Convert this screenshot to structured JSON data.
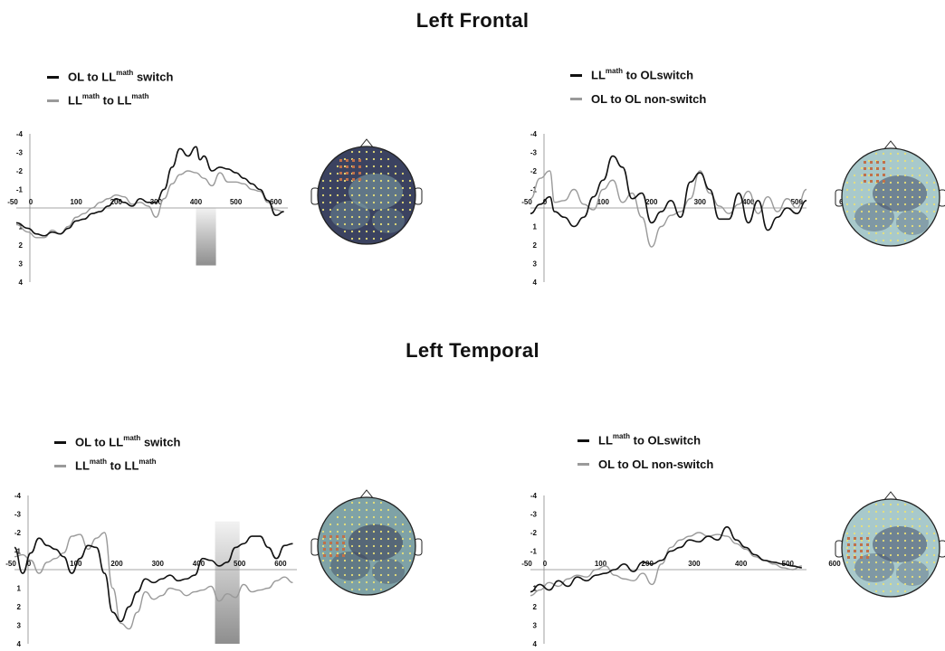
{
  "sections": [
    {
      "title": "Left Frontal"
    },
    {
      "title": "Left Temporal"
    }
  ],
  "colors": {
    "series_dark": "#111111",
    "series_light": "#9a9a9a",
    "head_dark": "#3a4058",
    "head_light": "#9fc1c4",
    "electrode": "#e8e07a",
    "marker": "#c0704a"
  },
  "panels": [
    {
      "legend": [
        {
          "main": "OL to LL",
          "sup": "math",
          "tail": " switch",
          "color": "#111111"
        },
        {
          "main": "LL",
          "sup": "math",
          "tail": " to LL",
          "sup2": "math",
          "color": "#9a9a9a"
        }
      ],
      "head": "dark"
    },
    {
      "legend": [
        {
          "main": "LL",
          "sup": "math",
          "tail": " to OLswitch",
          "color": "#111111"
        },
        {
          "main": "OL to OL non-switch",
          "sup": "",
          "tail": "",
          "color": "#9a9a9a"
        }
      ],
      "head": "light"
    },
    {
      "legend": [
        {
          "main": "OL to LL",
          "sup": "math",
          "tail": " switch",
          "color": "#111111"
        },
        {
          "main": "LL",
          "sup": "math",
          "tail": " to LL",
          "sup2": "math",
          "color": "#9a9a9a"
        }
      ],
      "head": "mid"
    },
    {
      "legend": [
        {
          "main": "LL",
          "sup": "math",
          "tail": " to OLswitch",
          "color": "#111111"
        },
        {
          "main": "OL to OL non-switch",
          "sup": "",
          "tail": "",
          "color": "#9a9a9a"
        }
      ],
      "head": "light"
    }
  ],
  "chart_data": [
    {
      "type": "line",
      "xlim": [
        -50,
        630
      ],
      "ylim": [
        -4,
        4
      ],
      "x_ticks": [
        "-50",
        "0",
        "100",
        "200",
        "300",
        "400",
        "500",
        "600"
      ],
      "x_tick_values": [
        -50,
        0,
        100,
        200,
        300,
        400,
        500,
        600
      ],
      "y_ticks": [
        "-4",
        "-3",
        "-2",
        "-1",
        "1",
        "2",
        "3",
        "4"
      ],
      "y_tick_values": [
        -4,
        -3,
        -2,
        -1,
        1,
        2,
        3,
        4
      ],
      "highlight": {
        "x": [
          400,
          450
        ],
        "y": [
          0,
          3.1
        ]
      },
      "series": [
        {
          "x": [
            -50,
            -20,
            0,
            20,
            40,
            60,
            80,
            100,
            120,
            140,
            160,
            180,
            200,
            220,
            240,
            260,
            280,
            300,
            320,
            340,
            360,
            380,
            400,
            410,
            420,
            440,
            460,
            480,
            500,
            520,
            540,
            560,
            580,
            600,
            620
          ],
          "y": [
            0.8,
            1.1,
            1.4,
            1.5,
            1.3,
            1.4,
            1.1,
            0.7,
            0.6,
            0.3,
            0.2,
            -0.1,
            -0.5,
            -0.3,
            -0.1,
            -0.5,
            -0.3,
            -0.3,
            -1.0,
            -2.2,
            -3.2,
            -2.8,
            -3.3,
            -2.6,
            -2.8,
            -2.0,
            -2.2,
            -2.1,
            -1.9,
            -1.6,
            -1.3,
            -1.0,
            -0.4,
            0.4,
            0.2
          ]
        },
        {
          "x": [
            -50,
            -20,
            0,
            20,
            40,
            60,
            80,
            100,
            120,
            140,
            160,
            180,
            200,
            220,
            240,
            260,
            280,
            300,
            320,
            340,
            360,
            380,
            400,
            420,
            440,
            460,
            480,
            500,
            520,
            540,
            560,
            580,
            600,
            620
          ],
          "y": [
            0.9,
            1.3,
            1.6,
            1.6,
            1.2,
            1.4,
            1.0,
            0.5,
            0.3,
            0.0,
            -0.3,
            -0.5,
            -0.7,
            -0.6,
            -0.2,
            -0.3,
            -0.1,
            0.5,
            -0.5,
            -1.3,
            -1.8,
            -2.0,
            -1.9,
            -1.6,
            -1.2,
            -1.9,
            -1.4,
            -1.4,
            -1.3,
            -1.0,
            -0.9,
            -0.3,
            0.1,
            0.2
          ]
        }
      ]
    },
    {
      "type": "line",
      "xlim": [
        -50,
        520
      ],
      "ylim": [
        -4,
        4
      ],
      "x_ticks": [
        "-50",
        "0",
        "100",
        "200",
        "300",
        "400",
        "500",
        "600"
      ],
      "x_tick_values": [
        -50,
        0,
        100,
        200,
        300,
        400,
        500,
        600
      ],
      "y_ticks": [
        "-4",
        "-3",
        "-2",
        "-1",
        "1",
        "2",
        "3",
        "4"
      ],
      "y_tick_values": [
        -4,
        -3,
        -2,
        -1,
        1,
        2,
        3,
        4
      ],
      "series": [
        {
          "x": [
            -50,
            -30,
            -10,
            0,
            20,
            40,
            60,
            80,
            100,
            120,
            140,
            160,
            180,
            200,
            220,
            240,
            260,
            280,
            300,
            320,
            340,
            360,
            380,
            400,
            420,
            440,
            460,
            480,
            500,
            520
          ],
          "y": [
            0.3,
            -0.2,
            -0.6,
            0.2,
            0.5,
            1.0,
            0.5,
            -0.6,
            -1.5,
            -2.8,
            -2.2,
            -0.5,
            -0.8,
            0.8,
            0.2,
            -0.4,
            0.5,
            -1.4,
            -1.9,
            -1.0,
            0.6,
            0.6,
            -0.8,
            0.8,
            -0.4,
            1.2,
            0.5,
            0.0,
            0.3,
            -0.4
          ]
        },
        {
          "x": [
            -50,
            -30,
            -10,
            0,
            20,
            40,
            60,
            80,
            100,
            120,
            140,
            160,
            180,
            200,
            220,
            240,
            260,
            280,
            300,
            320,
            340,
            360,
            380,
            400,
            420,
            440,
            460,
            480,
            500,
            520
          ],
          "y": [
            -0.5,
            -1.6,
            -2.0,
            -0.3,
            -0.4,
            -1.0,
            -0.2,
            0.1,
            -1.0,
            -1.5,
            -0.3,
            -0.8,
            0.5,
            2.1,
            1.0,
            0.4,
            0.2,
            -0.5,
            -2.0,
            -0.8,
            -0.1,
            0.3,
            -0.2,
            -0.9,
            0.3,
            -0.6,
            0.2,
            -0.5,
            0.0,
            -1.0
          ]
        }
      ]
    },
    {
      "type": "line",
      "xlim": [
        -50,
        640
      ],
      "ylim": [
        -4,
        4
      ],
      "x_ticks": [
        "-50",
        "0",
        "100",
        "200",
        "300",
        "400",
        "500",
        "600"
      ],
      "x_tick_values": [
        -50,
        0,
        100,
        200,
        300,
        400,
        500,
        600
      ],
      "y_ticks": [
        "-4",
        "-3",
        "-2",
        "-1",
        "1",
        "2",
        "3",
        "4"
      ],
      "y_tick_values": [
        -4,
        -3,
        -2,
        -1,
        1,
        2,
        3,
        4
      ],
      "highlight": {
        "x": [
          440,
          500
        ],
        "y": [
          -2.6,
          4
        ]
      },
      "series": [
        {
          "x": [
            -50,
            -30,
            -10,
            10,
            30,
            50,
            70,
            90,
            110,
            130,
            150,
            170,
            190,
            210,
            230,
            250,
            270,
            290,
            310,
            330,
            350,
            370,
            390,
            410,
            430,
            450,
            470,
            490,
            510,
            530,
            550,
            570,
            590,
            610,
            630
          ],
          "y": [
            -1.2,
            0.2,
            -0.9,
            -1.7,
            -1.3,
            -1.1,
            -0.7,
            0.2,
            -0.6,
            -1.3,
            -1.2,
            0.2,
            2.3,
            2.8,
            2.0,
            1.2,
            0.5,
            0.7,
            0.5,
            0.3,
            0.6,
            0.5,
            0.3,
            -0.6,
            -0.5,
            -0.2,
            -0.4,
            -1.2,
            -1.4,
            -1.8,
            -1.8,
            -1.2,
            -0.6,
            -1.3,
            -1.4
          ]
        },
        {
          "x": [
            -50,
            -30,
            -10,
            10,
            30,
            50,
            70,
            90,
            110,
            130,
            150,
            170,
            190,
            210,
            230,
            250,
            270,
            290,
            310,
            330,
            350,
            370,
            390,
            410,
            430,
            450,
            470,
            490,
            510,
            530,
            550,
            570,
            590,
            610,
            630
          ],
          "y": [
            -0.7,
            -0.8,
            -0.5,
            0.2,
            -0.4,
            -0.6,
            -0.9,
            -1.8,
            -1.9,
            -1.1,
            -1.7,
            -2.0,
            1.0,
            2.9,
            3.2,
            2.3,
            1.2,
            1.6,
            1.4,
            1.0,
            1.1,
            1.4,
            1.2,
            1.1,
            0.9,
            1.7,
            1.3,
            1.5,
            0.8,
            1.2,
            1.1,
            1.0,
            0.6,
            0.4,
            0.7
          ]
        }
      ]
    },
    {
      "type": "line",
      "xlim": [
        -50,
        540
      ],
      "ylim": [
        -4,
        4
      ],
      "x_ticks": [
        "-50",
        "0",
        "100",
        "200",
        "300",
        "400",
        "500",
        "600"
      ],
      "x_tick_values": [
        -50,
        0,
        100,
        200,
        300,
        400,
        500,
        600
      ],
      "y_ticks": [
        "-4",
        "-3",
        "-2",
        "-1",
        "1",
        "2",
        "3",
        "4"
      ],
      "y_tick_values": [
        -4,
        -3,
        -2,
        -1,
        1,
        2,
        3,
        4
      ],
      "series": [
        {
          "x": [
            -50,
            -30,
            -10,
            10,
            30,
            50,
            70,
            90,
            110,
            130,
            150,
            170,
            190,
            210,
            230,
            250,
            270,
            290,
            310,
            330,
            350,
            370,
            390,
            410,
            430,
            450,
            470,
            490,
            510,
            530
          ],
          "y": [
            1.2,
            0.8,
            1.1,
            0.6,
            0.9,
            0.4,
            0.6,
            0.3,
            0.2,
            0.0,
            -0.3,
            0.1,
            -0.4,
            -0.3,
            -0.5,
            -1.0,
            -1.2,
            -1.6,
            -1.5,
            -1.8,
            -1.6,
            -2.3,
            -1.6,
            -1.2,
            -0.8,
            -0.5,
            -0.4,
            -0.3,
            -0.2,
            -0.1
          ]
        },
        {
          "x": [
            -50,
            -30,
            -10,
            10,
            30,
            50,
            70,
            90,
            110,
            130,
            150,
            170,
            190,
            210,
            230,
            250,
            270,
            290,
            310,
            330,
            350,
            370,
            390,
            410,
            430,
            450,
            470,
            490,
            510,
            530
          ],
          "y": [
            1.4,
            1.1,
            0.7,
            0.9,
            0.5,
            0.3,
            0.4,
            0.0,
            -0.2,
            0.3,
            0.5,
            0.6,
            0.2,
            0.8,
            -0.3,
            -1.2,
            -1.6,
            -1.8,
            -2.0,
            -1.8,
            -1.9,
            -1.8,
            -1.4,
            -1.1,
            -0.7,
            -0.5,
            -0.3,
            -0.1,
            0.0,
            -0.2
          ]
        }
      ]
    }
  ]
}
